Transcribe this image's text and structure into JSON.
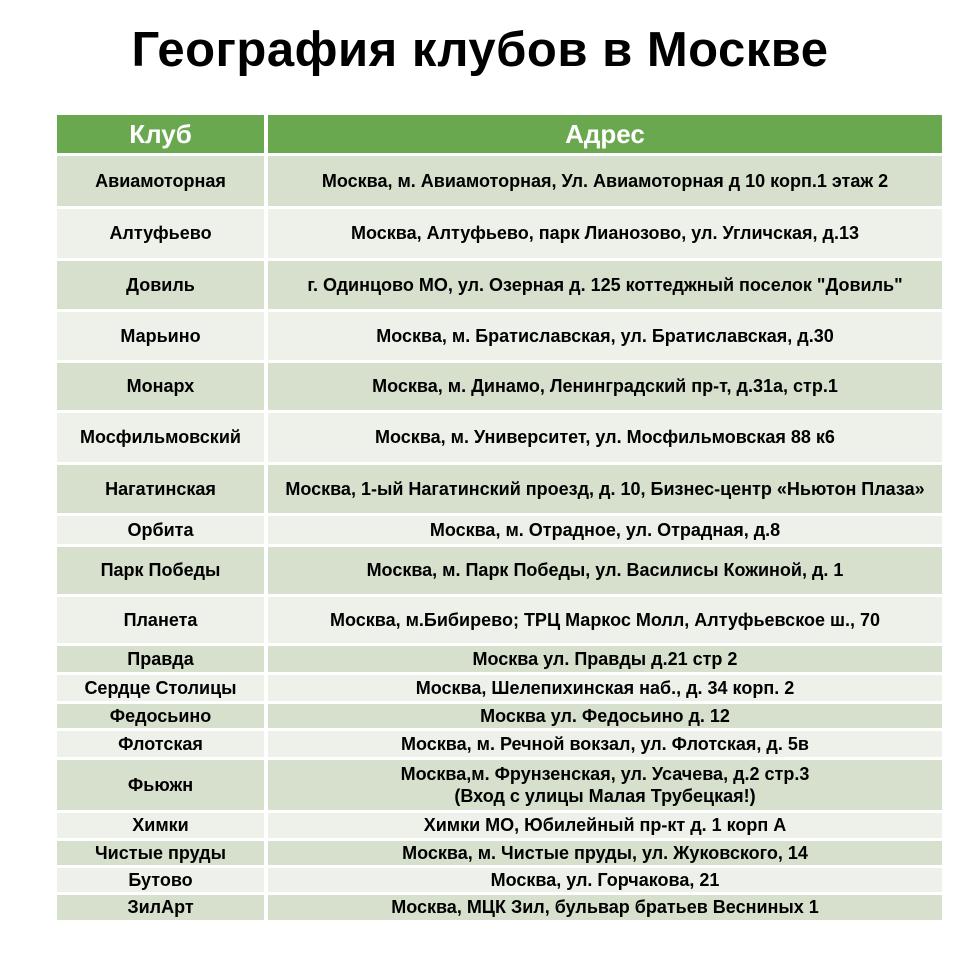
{
  "title": "География клубов в Москве",
  "colors": {
    "header_green": "#6aa84f",
    "row_dark": "#d6e0cc",
    "row_light": "#edf1e9",
    "text": "#000000",
    "header_text": "#ffffff"
  },
  "table": {
    "headers": [
      "Клуб",
      "Адрес"
    ],
    "rows": [
      {
        "club": "Авиамоторная",
        "address": "Москва, м. Авиамоторная, Ул. Авиамоторная д 10 корп.1 этаж 2"
      },
      {
        "club": "Алтуфьево",
        "address": "Москва, Алтуфьево, парк Лианозово, ул. Угличская, д.13"
      },
      {
        "club": "Довиль",
        "address": "г. Одинцово МО, ул. Озерная д. 125 коттеджный поселок \"Довиль\""
      },
      {
        "club": "Марьино",
        "address": "Москва, м. Братиславская, ул. Братиславская, д.30"
      },
      {
        "club": "Монарх",
        "address": "Москва, м. Динамо, Ленинградский пр-т, д.31а, стр.1"
      },
      {
        "club": "Мосфильмовский",
        "address": "Москва, м. Университет, ул. Мосфильмовская 88 к6"
      },
      {
        "club": "Нагатинская",
        "address": "Москва, 1-ый Нагатинский проезд, д. 10, Бизнес-центр «Ньютон Плаза»"
      },
      {
        "club": "Орбита",
        "address": "Москва, м. Отрадное, ул. Отрадная, д.8"
      },
      {
        "club": "Парк Победы",
        "address": "Москва, м. Парк Победы, ул. Василисы Кожиной, д. 1"
      },
      {
        "club": "Планета",
        "address": "Москва, м.Бибирево; ТРЦ Маркос Молл, Алтуфьевское ш., 70"
      },
      {
        "club": "Правда",
        "address": "Москва ул. Правды д.21 стр 2"
      },
      {
        "club": "Сердце Столицы",
        "address": "Москва, Шелепихинская наб., д. 34 корп. 2"
      },
      {
        "club": "Федосьино",
        "address": "Москва ул. Федосьино д. 12"
      },
      {
        "club": "Флотская",
        "address": "Москва, м. Речной вокзал, ул. Флотская, д. 5в"
      },
      {
        "club": "Фьюжн",
        "address": "Москва,м. Фрунзенская, ул. Усачева, д.2 стр.3\n(Вход с улицы Малая Трубецкая!)"
      },
      {
        "club": "Химки",
        "address": "Химки МО, Юбилейный пр-кт д. 1 корп А"
      },
      {
        "club": "Чистые пруды",
        "address": "Москва, м. Чистые пруды, ул. Жуковского, 14"
      },
      {
        "club": "Бутово",
        "address": "Москва, ул. Горчакова, 21"
      },
      {
        "club": "ЗилАрт",
        "address": "Москва, МЦК Зил, бульвар братьев Весниных 1"
      }
    ]
  }
}
